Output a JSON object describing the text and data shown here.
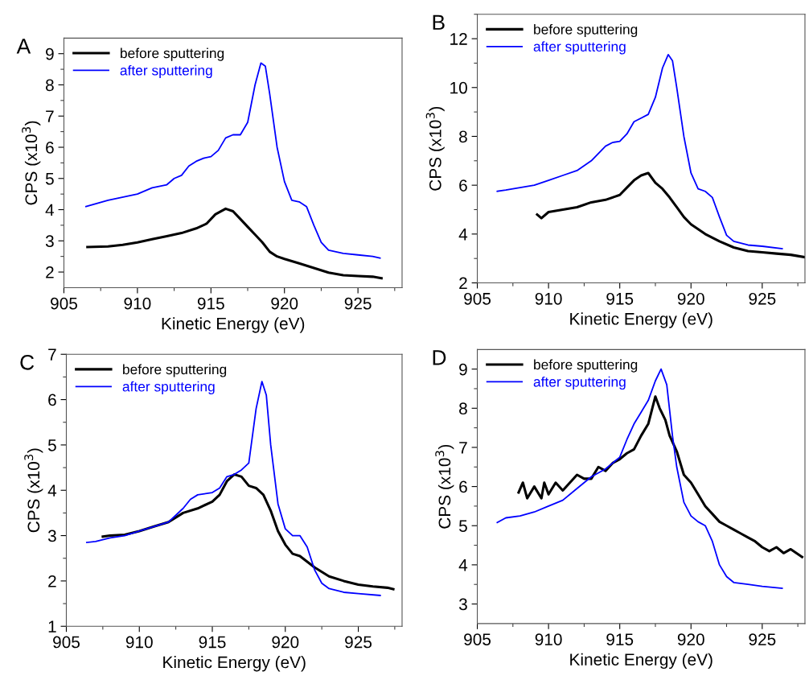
{
  "chart_data": [
    {
      "type": "line",
      "title": "A",
      "xlabel": "Kinetic Energy (eV)",
      "ylabel": "CPS (x10$^{3}$)",
      "xlim": [
        905,
        928
      ],
      "ylim": [
        1.5,
        9.5
      ],
      "xticks": [
        905,
        {
          "value": 907.5,
          "label": null
        },
        910,
        {
          "value": 912.5,
          "label": null
        },
        915,
        {
          "value": 917.5,
          "label": null
        },
        920,
        {
          "value": 922.5,
          "label": null
        },
        925,
        {
          "value": 927.5,
          "label": null
        }
      ],
      "yticks": [
        2,
        {
          "value": 2.5,
          "label": null
        },
        3,
        {
          "value": 3.5,
          "label": null
        },
        4,
        {
          "value": 4.5,
          "label": null
        },
        5,
        {
          "value": 5.5,
          "label": null
        },
        6,
        {
          "value": 6.5,
          "label": null
        },
        7,
        {
          "value": 7.5,
          "label": null
        },
        8,
        {
          "value": 8.5,
          "label": null
        },
        9
      ],
      "legend": "top left",
      "grid": false,
      "line_style": "solid",
      "marker": "none",
      "series": [
        {
          "name": "before sputtering",
          "color": "#000000",
          "x": [
            906.6,
            908,
            909,
            910,
            911,
            912,
            913,
            914,
            914.7,
            915.3,
            916,
            916.5,
            917,
            917.5,
            918,
            918.5,
            919,
            919.5,
            920,
            921,
            922,
            923,
            924,
            925,
            926,
            926.6
          ],
          "values": [
            2.8,
            2.82,
            2.87,
            2.95,
            3.05,
            3.15,
            3.25,
            3.4,
            3.55,
            3.85,
            4.03,
            3.95,
            3.7,
            3.45,
            3.2,
            2.95,
            2.65,
            2.5,
            2.42,
            2.28,
            2.13,
            1.98,
            1.9,
            1.87,
            1.85,
            1.8
          ]
        },
        {
          "name": "after sputtering",
          "color": "#0000ff",
          "x": [
            906.5,
            908,
            910,
            911,
            912,
            912.5,
            913,
            913.5,
            914,
            914.5,
            915,
            915.5,
            916,
            916.5,
            917,
            917.5,
            918,
            918.4,
            918.7,
            919,
            919.5,
            920,
            920.5,
            921,
            921.5,
            922,
            922.5,
            923,
            924,
            925,
            926,
            926.5
          ],
          "values": [
            4.1,
            4.3,
            4.5,
            4.7,
            4.8,
            5.0,
            5.1,
            5.4,
            5.55,
            5.65,
            5.7,
            5.9,
            6.3,
            6.4,
            6.4,
            6.8,
            8.0,
            8.7,
            8.6,
            7.7,
            6.0,
            4.9,
            4.3,
            4.25,
            4.1,
            3.5,
            2.95,
            2.7,
            2.6,
            2.55,
            2.5,
            2.45
          ]
        }
      ]
    },
    {
      "type": "line",
      "title": "B",
      "xlabel": "Kinetic Energy (eV)",
      "ylabel": "CPS (x10$^{3}$)",
      "xlim": [
        905,
        928
      ],
      "ylim": [
        2,
        13
      ],
      "xticks": [
        905,
        {
          "value": 907.5,
          "label": null
        },
        910,
        {
          "value": 912.5,
          "label": null
        },
        915,
        {
          "value": 917.5,
          "label": null
        },
        920,
        {
          "value": 922.5,
          "label": null
        },
        925,
        {
          "value": 927.5,
          "label": null
        }
      ],
      "yticks": [
        2,
        {
          "value": 3,
          "label": null
        },
        4,
        {
          "value": 5,
          "label": null
        },
        6,
        {
          "value": 7,
          "label": null
        },
        8,
        {
          "value": 9,
          "label": null
        },
        10,
        {
          "value": 11,
          "label": null
        },
        12,
        {
          "value": 13,
          "label": null
        }
      ],
      "legend": "top left",
      "grid": false,
      "line_style": "solid",
      "marker": "none",
      "series": [
        {
          "name": "before sputtering",
          "color": "#000000",
          "x": [
            909.2,
            909.5,
            910,
            911,
            912,
            913,
            914,
            915,
            915.5,
            916,
            916.5,
            917,
            917.5,
            918,
            918.5,
            919,
            919.5,
            920,
            921,
            922,
            923,
            924,
            925,
            926,
            927,
            928
          ],
          "values": [
            4.8,
            4.65,
            4.9,
            5.0,
            5.1,
            5.3,
            5.4,
            5.6,
            5.9,
            6.2,
            6.4,
            6.5,
            6.1,
            5.85,
            5.5,
            5.1,
            4.7,
            4.4,
            4.0,
            3.7,
            3.45,
            3.3,
            3.25,
            3.2,
            3.15,
            3.05
          ]
        },
        {
          "name": "after sputtering",
          "color": "#0000ff",
          "x": [
            906.4,
            907,
            908,
            909,
            910,
            911,
            912,
            913,
            914,
            914.5,
            915,
            915.5,
            916,
            916.5,
            917,
            917.5,
            918,
            918.4,
            918.7,
            919,
            919.5,
            920,
            920.5,
            921,
            921.5,
            922,
            922.5,
            923,
            924,
            925,
            926.4
          ],
          "values": [
            5.75,
            5.8,
            5.9,
            6.0,
            6.2,
            6.4,
            6.6,
            7.0,
            7.6,
            7.75,
            7.8,
            8.1,
            8.6,
            8.75,
            8.9,
            9.6,
            10.8,
            11.35,
            11.1,
            10.0,
            8.0,
            6.5,
            5.85,
            5.75,
            5.5,
            4.7,
            3.95,
            3.7,
            3.55,
            3.5,
            3.4
          ]
        }
      ]
    },
    {
      "type": "line",
      "title": "C",
      "xlabel": "Kinetic Energy (eV)",
      "ylabel": "CPS (x10$^{3}$)",
      "xlim": [
        905,
        928
      ],
      "ylim": [
        1,
        7
      ],
      "xticks": [
        905,
        {
          "value": 907.5,
          "label": null
        },
        910,
        {
          "value": 912.5,
          "label": null
        },
        915,
        {
          "value": 917.5,
          "label": null
        },
        920,
        {
          "value": 922.5,
          "label": null
        },
        925,
        {
          "value": 927.5,
          "label": null
        }
      ],
      "yticks": [
        1,
        {
          "value": 1.5,
          "label": null
        },
        2,
        {
          "value": 2.5,
          "label": null
        },
        3,
        {
          "value": 3.5,
          "label": null
        },
        4,
        {
          "value": 4.5,
          "label": null
        },
        5,
        {
          "value": 5.5,
          "label": null
        },
        6,
        {
          "value": 6.5,
          "label": null
        },
        7
      ],
      "legend": "top left",
      "grid": false,
      "line_style": "solid",
      "marker": "none",
      "series": [
        {
          "name": "before sputtering",
          "color": "#000000",
          "x": [
            907.5,
            908,
            909,
            910,
            911,
            912,
            913,
            914,
            915,
            915.5,
            916,
            916.5,
            917,
            917.5,
            918,
            918.5,
            919,
            919.5,
            920,
            920.5,
            921,
            922,
            923,
            924,
            925,
            926,
            927,
            927.4
          ],
          "values": [
            2.98,
            3.0,
            3.02,
            3.1,
            3.2,
            3.3,
            3.5,
            3.6,
            3.75,
            3.9,
            4.2,
            4.35,
            4.3,
            4.1,
            4.05,
            3.9,
            3.55,
            3.1,
            2.8,
            2.6,
            2.55,
            2.3,
            2.1,
            2.0,
            1.92,
            1.88,
            1.85,
            1.82
          ]
        },
        {
          "name": "after sputtering",
          "color": "#0000ff",
          "x": [
            906.4,
            907,
            908,
            909,
            910,
            911,
            912,
            912.5,
            913,
            913.5,
            914,
            915,
            915.5,
            916,
            916.5,
            917,
            917.5,
            918,
            918.4,
            918.7,
            919,
            919.5,
            920,
            920.5,
            921,
            921.5,
            922,
            922.5,
            923,
            924,
            925,
            926.5
          ],
          "values": [
            2.85,
            2.87,
            2.95,
            3.0,
            3.1,
            3.2,
            3.3,
            3.45,
            3.6,
            3.8,
            3.9,
            3.95,
            4.05,
            4.3,
            4.35,
            4.45,
            4.6,
            5.8,
            6.4,
            6.1,
            5.0,
            3.7,
            3.15,
            3.0,
            3.0,
            2.75,
            2.25,
            1.95,
            1.83,
            1.75,
            1.72,
            1.68
          ]
        }
      ]
    },
    {
      "type": "line",
      "title": "D",
      "xlabel": "Kinetic Energy (eV)",
      "ylabel": "CPS (x10$^{3}$)",
      "xlim": [
        905,
        928
      ],
      "ylim": [
        2.5,
        9.5
      ],
      "xticks": [
        905,
        {
          "value": 907.5,
          "label": null
        },
        910,
        {
          "value": 912.5,
          "label": null
        },
        915,
        {
          "value": 917.5,
          "label": null
        },
        920,
        {
          "value": 922.5,
          "label": null
        },
        925,
        {
          "value": 927.5,
          "label": null
        }
      ],
      "yticks": [
        3,
        {
          "value": 3.5,
          "label": null
        },
        4,
        {
          "value": 4.5,
          "label": null
        },
        5,
        {
          "value": 5.5,
          "label": null
        },
        6,
        {
          "value": 6.5,
          "label": null
        },
        7,
        {
          "value": 7.5,
          "label": null
        },
        8,
        {
          "value": 8.5,
          "label": null
        },
        9
      ],
      "legend": "top left",
      "grid": false,
      "line_style": "solid",
      "marker": "none",
      "series": [
        {
          "name": "before sputtering",
          "color": "#000000",
          "x": [
            907.9,
            908.2,
            908.5,
            909,
            909.5,
            909.7,
            910,
            910.5,
            911,
            911.5,
            912,
            912.5,
            913,
            913.5,
            914,
            914.5,
            915,
            915.5,
            916,
            916.5,
            917,
            917.5,
            917.8,
            918.2,
            918.5,
            919,
            919.5,
            920,
            920.5,
            921,
            921.5,
            922,
            922.5,
            923,
            923.5,
            924,
            924.5,
            925,
            925.5,
            926,
            926.5,
            927,
            927.8
          ],
          "values": [
            5.85,
            6.1,
            5.7,
            6.0,
            5.7,
            6.1,
            5.8,
            6.1,
            5.9,
            6.1,
            6.3,
            6.2,
            6.2,
            6.5,
            6.4,
            6.6,
            6.7,
            6.85,
            6.95,
            7.3,
            7.6,
            8.3,
            8.0,
            7.7,
            7.3,
            6.9,
            6.3,
            6.1,
            5.8,
            5.5,
            5.3,
            5.1,
            5.0,
            4.9,
            4.8,
            4.7,
            4.6,
            4.45,
            4.35,
            4.45,
            4.3,
            4.4,
            4.2
          ]
        },
        {
          "name": "after sputtering",
          "color": "#0000ff",
          "x": [
            906.4,
            907,
            908,
            909,
            910,
            911,
            912,
            913,
            914,
            915,
            915.5,
            916,
            916.5,
            917,
            917.5,
            917.9,
            918.3,
            918.7,
            919,
            919.5,
            920,
            920.5,
            921,
            921.5,
            922,
            922.5,
            923,
            924,
            925,
            926.4
          ],
          "values": [
            5.08,
            5.2,
            5.25,
            5.35,
            5.5,
            5.65,
            5.95,
            6.25,
            6.45,
            6.75,
            7.2,
            7.6,
            7.9,
            8.2,
            8.7,
            9.0,
            8.6,
            7.3,
            6.5,
            5.6,
            5.25,
            5.1,
            5.0,
            4.6,
            4.0,
            3.7,
            3.55,
            3.5,
            3.45,
            3.4
          ]
        }
      ]
    }
  ]
}
